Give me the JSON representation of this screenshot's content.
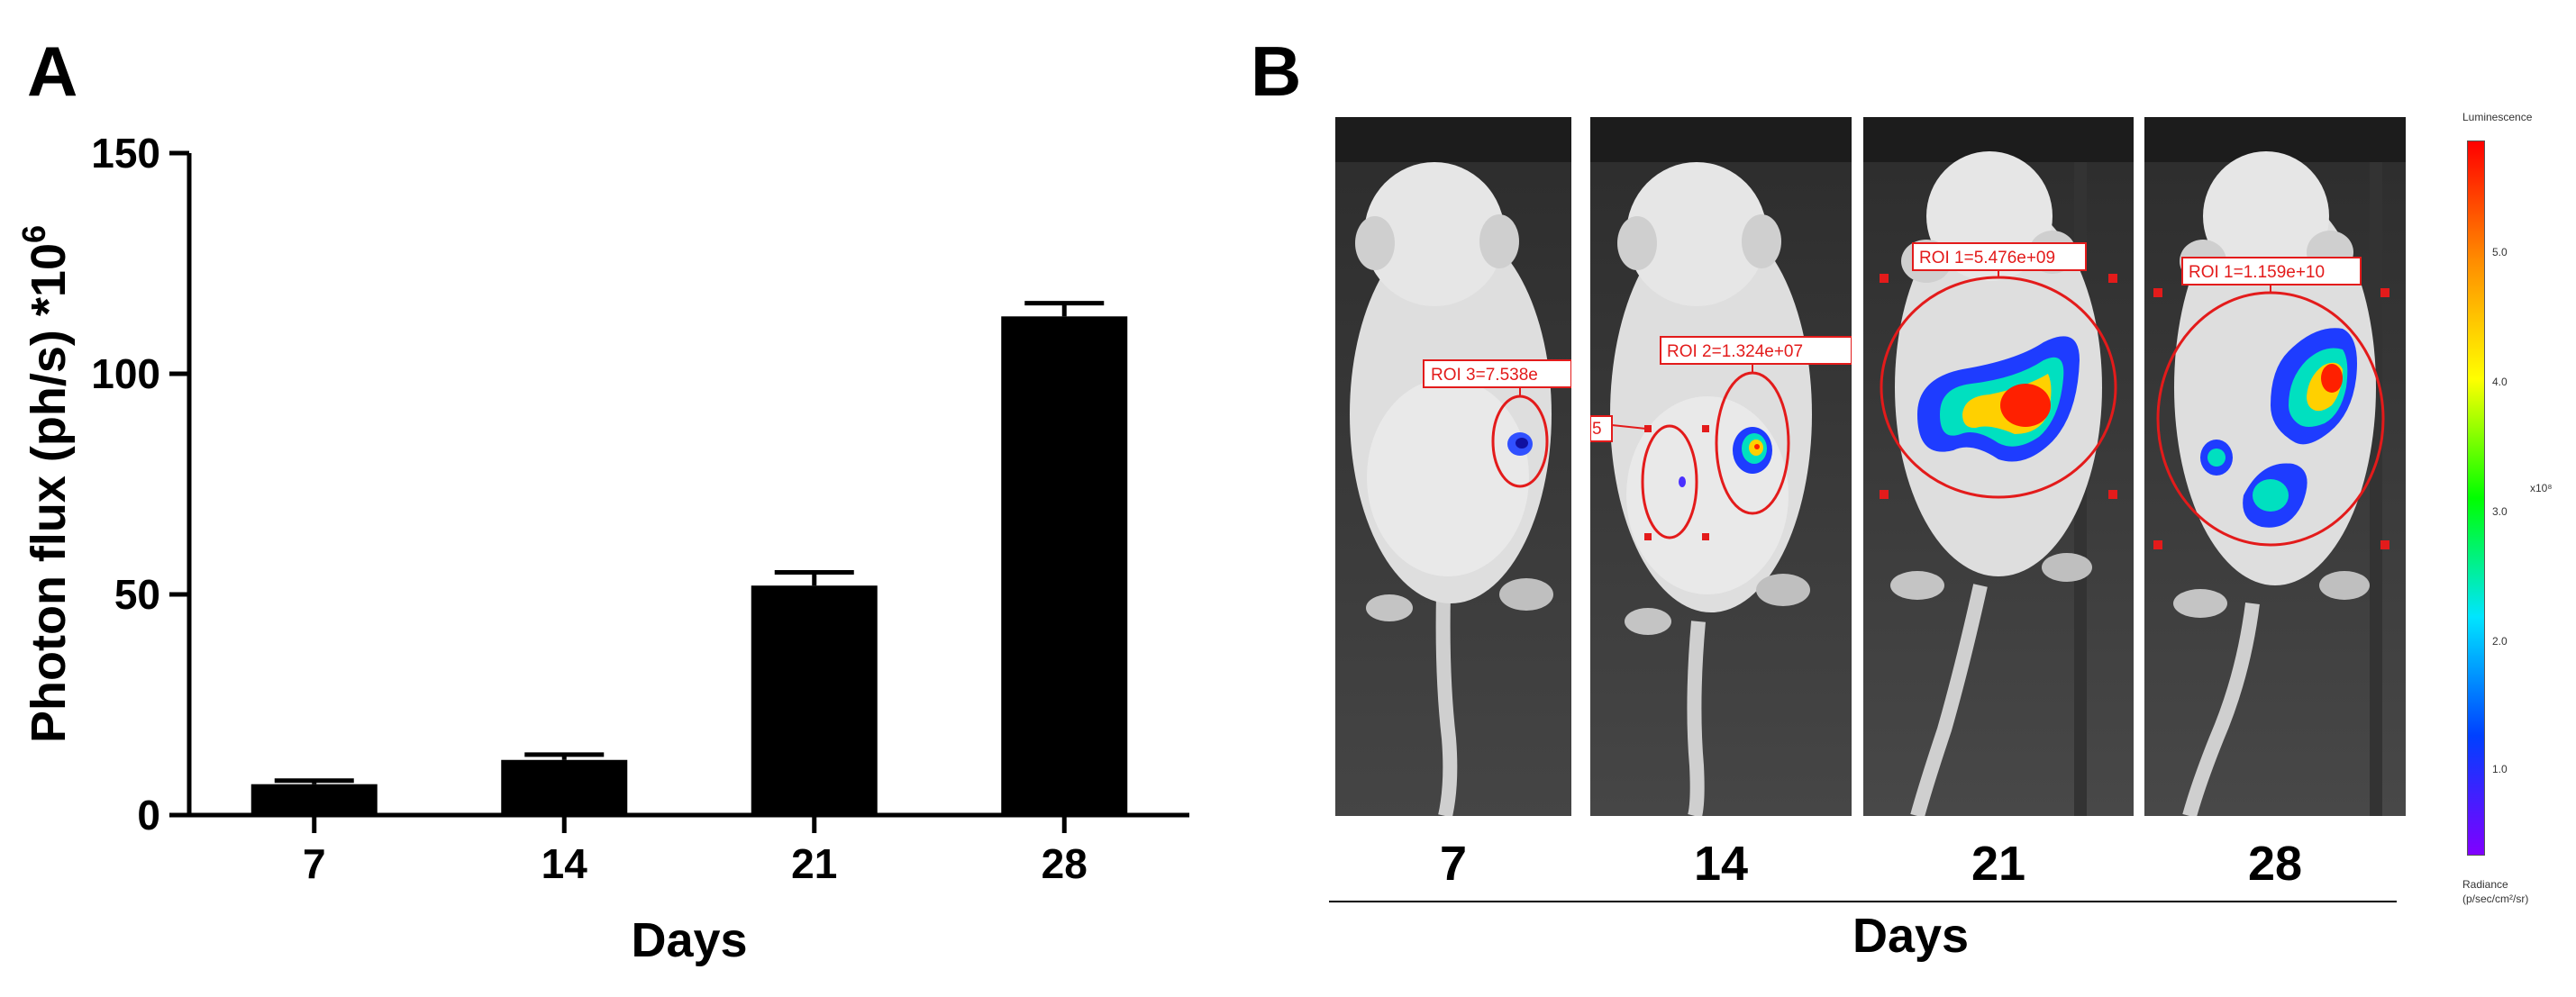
{
  "panel_a": {
    "letter": "A"
  },
  "panel_b": {
    "letter": "B",
    "images": [
      {
        "day": "7",
        "roi_label": "ROI 3=7.538e"
      },
      {
        "day": "14",
        "roi_label": "ROI 2=1.324e+07",
        "roi_label_left": "5"
      },
      {
        "day": "21",
        "roi_label": "ROI 1=5.476e+09"
      },
      {
        "day": "28",
        "roi_label": "ROI 1=1.159e+10"
      }
    ],
    "xlabel": "Days",
    "colorbar": {
      "title": "Luminescence",
      "ticks": [
        "5.0",
        "4.0",
        "3.0",
        "2.0",
        "1.0"
      ],
      "multiplier": "x10⁸",
      "unit_label": "Radiance",
      "unit": "(p/sec/cm²/sr)",
      "colors": [
        "#ff0000",
        "#ff8c00",
        "#ffff00",
        "#00ff00",
        "#00e5ff",
        "#0040ff",
        "#8000ff"
      ]
    }
  },
  "chart_data": {
    "type": "bar",
    "categories": [
      "7",
      "14",
      "21",
      "28"
    ],
    "values": [
      7,
      12.5,
      52,
      113
    ],
    "errors": [
      0.8,
      1.2,
      3,
      3
    ],
    "xlabel": "Days",
    "ylabel": "Photon flux (ph/s) *10",
    "ylabel_superscript": "6",
    "ylim": [
      0,
      150
    ],
    "yticks": [
      0,
      50,
      100,
      150
    ],
    "bar_color": "#000000",
    "grid": false
  }
}
